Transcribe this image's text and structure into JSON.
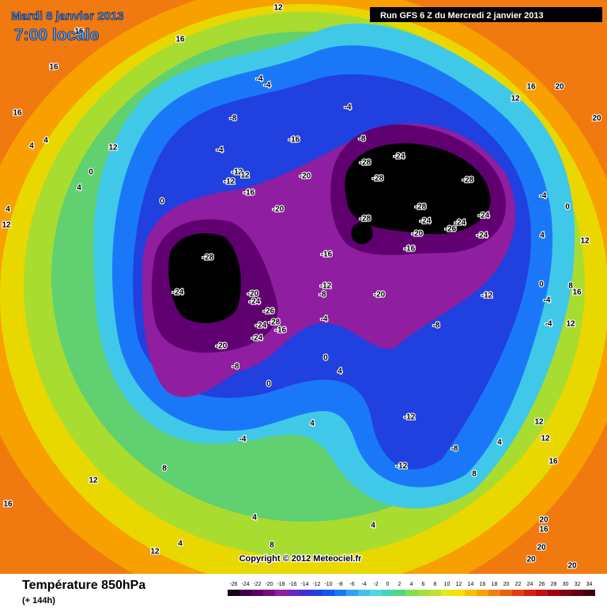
{
  "header": {
    "date": "Mardi 8 janvier 2013",
    "time": "7:00 locale",
    "run": "Run GFS 6 Z du Mercredi 2 janvier 2013"
  },
  "footer": {
    "title": "Température 850hPa",
    "lead": "(+ 144h)",
    "copyright": "Copyright © 2012 Meteociel.fr"
  },
  "colorbar": {
    "ticks": [
      -26,
      -24,
      -22,
      -20,
      -18,
      -16,
      -14,
      -12,
      -10,
      -8,
      -6,
      -4,
      -2,
      0,
      2,
      4,
      6,
      8,
      10,
      12,
      14,
      16,
      18,
      20,
      22,
      24,
      26,
      28,
      30,
      32,
      34
    ],
    "colors": [
      "#1a0020",
      "#3a0040",
      "#5a0060",
      "#7a0a80",
      "#8f1ea0",
      "#6a28c0",
      "#4030d0",
      "#2040e0",
      "#1058f0",
      "#1a78f8",
      "#30a0f8",
      "#40c0f0",
      "#50d8e0",
      "#40d8b0",
      "#50d880",
      "#80e050",
      "#a0e040",
      "#c0e030",
      "#e0e820",
      "#f8e000",
      "#f8c000",
      "#f8a000",
      "#f08010",
      "#e86010",
      "#e04010",
      "#d82010",
      "#c01010",
      "#a00010",
      "#800010",
      "#600010",
      "#400010"
    ]
  },
  "map": {
    "labels": [
      "16",
      "16",
      "4",
      "4",
      "12",
      "0",
      "4",
      "4",
      "12",
      "0",
      "-4",
      "-12",
      "12",
      "-12",
      "-16",
      "-8",
      "-4",
      "-4",
      "-16",
      "-20",
      "-20",
      "-28",
      "-24",
      "-20",
      "-24",
      "-26",
      "-24",
      "-28",
      "-16",
      "-24",
      "-20",
      "-8",
      "-16",
      "-12",
      "-8",
      "-4",
      "0",
      "0",
      "-4",
      "8",
      "12",
      "16",
      "-28",
      "-24",
      "-28",
      "-28",
      "-28",
      "-28",
      "-24",
      "-24",
      "-24",
      "-26",
      "-20",
      "-24",
      "-16",
      "-20",
      "-12",
      "-8",
      "-4",
      "0",
      "4",
      "0",
      "-4",
      "-4",
      "-12",
      "-8",
      "-12",
      "-4",
      "-8",
      "12",
      "16",
      "20",
      "20",
      "8",
      "16",
      "12",
      "12",
      "12",
      "12",
      "16",
      "20",
      "16",
      "20",
      "20",
      "20",
      "4",
      "8",
      "4",
      "4",
      "8",
      "4",
      "4",
      "4",
      "12",
      "12",
      "16",
      "16"
    ]
  }
}
